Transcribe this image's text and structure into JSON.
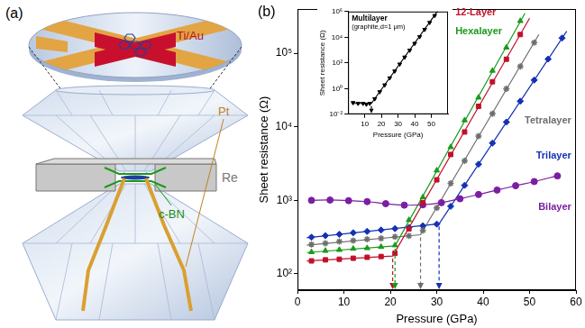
{
  "panel_a": {
    "label": "(a)",
    "electrodes": "Ti/Au",
    "wire": "Pt",
    "gasket": "Re",
    "insulator": "c-BN"
  },
  "chart_data": [
    {
      "type": "scatter",
      "annotations": [
        "(b)"
      ],
      "xlabel": "Pressure (GPa)",
      "ylabel": "Sheet resistance (Ω)",
      "log": "y",
      "grid": false,
      "xlim": [
        0,
        60
      ],
      "xticks": [
        0,
        10,
        20,
        30,
        40,
        50,
        60
      ],
      "ylim": [
        60,
        400000
      ],
      "yticks": [
        {
          "value": 100,
          "label": "10²"
        },
        {
          "value": 1000,
          "label": "10³"
        },
        {
          "value": 10000,
          "label": "10⁴"
        },
        {
          "value": 100000,
          "label": "10⁵"
        }
      ],
      "series": [
        {
          "name": "12-Layer",
          "color": "#c0102a",
          "marker": "square",
          "transition": 20.5,
          "x": [
            3,
            6,
            9,
            12,
            15,
            18,
            21,
            24,
            27,
            30,
            33,
            36,
            39,
            42,
            45,
            48
          ],
          "values": [
            150,
            155,
            158,
            163,
            168,
            172,
            190,
            410,
            930,
            1900,
            4200,
            8500,
            19000,
            41000,
            83000,
            180000
          ],
          "fit": [
            [
              2,
              150
            ],
            [
              20.5,
              175
            ],
            [
              50,
              300000
            ]
          ]
        },
        {
          "name": "Hexalayer",
          "color": "#1a9a1a",
          "marker": "triangle",
          "transition": 21,
          "x": [
            3,
            6,
            9,
            12,
            15,
            18,
            21,
            24,
            27,
            30,
            33,
            36,
            39,
            42,
            45,
            48
          ],
          "values": [
            198,
            206,
            212,
            220,
            224,
            233,
            245,
            540,
            1100,
            2550,
            5300,
            12300,
            25000,
            58000,
            120000,
            275000
          ],
          "fit": [
            [
              2,
              195
            ],
            [
              21,
              240
            ],
            [
              49,
              350000
            ]
          ]
        },
        {
          "name": "Tetralayer",
          "color": "#6e6e6e",
          "marker": "star",
          "transition": 26.5,
          "x": [
            3,
            6,
            9,
            12,
            15,
            18,
            21,
            24,
            27,
            30,
            33,
            36,
            39,
            42,
            45,
            48,
            51
          ],
          "values": [
            252,
            260,
            275,
            283,
            296,
            303,
            320,
            328,
            390,
            790,
            1700,
            3450,
            7500,
            15000,
            33000,
            66000,
            140000
          ],
          "fit": [
            [
              2,
              245
            ],
            [
              26.5,
              340
            ],
            [
              52,
              180000
            ]
          ]
        },
        {
          "name": "Trilayer",
          "color": "#1432b4",
          "marker": "diamond",
          "transition": 30.5,
          "x": [
            3,
            6,
            9,
            12,
            15,
            18,
            21,
            24,
            27,
            30,
            33,
            36,
            39,
            42,
            45,
            48,
            51,
            54,
            57
          ],
          "values": [
            315,
            330,
            345,
            362,
            378,
            395,
            412,
            428,
            450,
            475,
            830,
            1600,
            3100,
            6000,
            11600,
            22300,
            43200,
            83400,
            161000
          ],
          "fit": [
            [
              2,
              310
            ],
            [
              30.5,
              480
            ],
            [
              58,
              200000
            ]
          ]
        },
        {
          "name": "Bilayer",
          "color": "#7a1fa2",
          "marker": "circle",
          "line_style": "solid",
          "x": [
            3,
            7,
            11,
            15,
            19,
            23,
            27,
            31,
            35,
            39,
            43,
            47,
            51,
            56
          ],
          "values": [
            1000,
            1010,
            990,
            960,
            900,
            860,
            870,
            930,
            1050,
            1200,
            1380,
            1580,
            1800,
            2150
          ]
        }
      ]
    },
    {
      "type": "scatter",
      "title": "Multilayer",
      "subtitle": "(graphite,d≈1 μm)",
      "xlabel": "Pressure (GPa)",
      "ylabel": "Sheet resistance (Ω)",
      "log": "y",
      "grid": false,
      "xlim": [
        0,
        60
      ],
      "xticks": [
        10,
        20,
        30,
        40,
        50
      ],
      "ylim": [
        0.01,
        1000000
      ],
      "yticks": [
        {
          "value": 0.01,
          "label": "10⁻²"
        },
        {
          "value": 1,
          "label": "10⁰"
        },
        {
          "value": 100,
          "label": "10²"
        },
        {
          "value": 10000,
          "label": "10⁴"
        },
        {
          "value": 1000000,
          "label": "10⁶"
        }
      ],
      "series": [
        {
          "color": "#000000",
          "marker": "triangle_down",
          "transition": 14,
          "x": [
            3,
            6,
            9,
            11,
            13,
            16,
            19,
            22,
            25,
            28,
            31,
            34,
            37,
            40,
            43,
            46,
            49,
            52
          ],
          "values": [
            0.08,
            0.07,
            0.07,
            0.06,
            0.07,
            0.16,
            0.56,
            1.9,
            6.7,
            23,
            80,
            280,
            950,
            3300,
            11000,
            40000,
            140000,
            480000
          ],
          "fit": [
            [
              2,
              0.07
            ],
            [
              14,
              0.07
            ],
            [
              54,
              1200000
            ]
          ]
        }
      ]
    }
  ]
}
